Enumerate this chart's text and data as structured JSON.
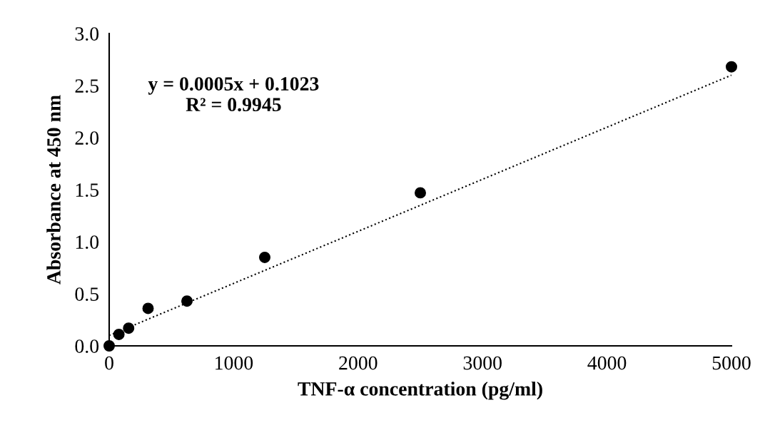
{
  "chart_data": {
    "type": "scatter",
    "xlabel": "TNF-α concentration (pg/ml)",
    "ylabel": "Absorbance at 450 nm",
    "annotations": [
      "y = 0.0005x + 0.1023\nR² = 0.9945"
    ],
    "series": [
      {
        "color": "#000000",
        "marker": "circle",
        "x": [
          0,
          78.125,
          156.25,
          312.5,
          625,
          1250,
          2500,
          5000
        ],
        "values": [
          0,
          0.11,
          0.17,
          0.36,
          0.43,
          0.85,
          1.47,
          2.68
        ]
      },
      {
        "type": "line",
        "color": "#000000",
        "line_style": "dotted",
        "marker": "none",
        "x": [
          0,
          5000
        ],
        "values": [
          0.1,
          2.6
        ]
      }
    ],
    "xlim": [
      0,
      5000
    ],
    "xticks": [
      0,
      1000,
      2000,
      3000,
      4000,
      5000
    ],
    "ylim": [
      0,
      3.0
    ],
    "yticks": [
      {
        "value": 0,
        "label": "0.0"
      },
      {
        "value": 0.5,
        "label": "0.5"
      },
      {
        "value": 1.0,
        "label": "1.0"
      },
      {
        "value": 1.5,
        "label": "1.5"
      },
      {
        "value": 2.0,
        "label": "2.0"
      },
      {
        "value": 2.5,
        "label": "2.5"
      },
      {
        "value": 3.0,
        "label": "3.0"
      }
    ],
    "grid": false,
    "legend": false
  }
}
